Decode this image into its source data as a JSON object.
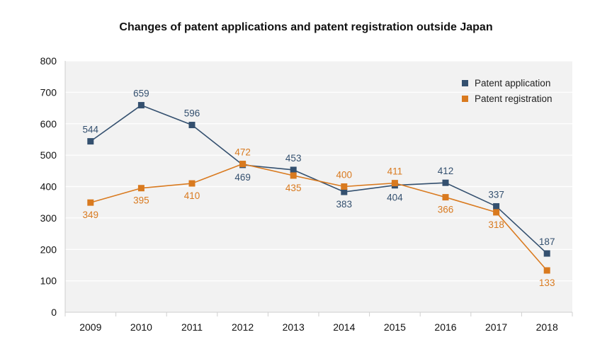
{
  "chart_data": {
    "type": "line",
    "title": "Changes of patent applications and patent registration outside Japan",
    "xlabel": "",
    "ylabel": "",
    "categories": [
      "2009",
      "2010",
      "2011",
      "2012",
      "2013",
      "2014",
      "2015",
      "2016",
      "2017",
      "2018"
    ],
    "series": [
      {
        "name": "Patent application",
        "values": [
          544,
          659,
          596,
          469,
          453,
          383,
          404,
          412,
          337,
          187
        ],
        "color": "#34506f",
        "labels": [
          "544",
          "659",
          "596",
          "469",
          "453",
          "383",
          "404",
          "412",
          "337",
          "187"
        ]
      },
      {
        "name": "Patent registration",
        "values": [
          349,
          395,
          410,
          472,
          435,
          400,
          411,
          366,
          318,
          133
        ],
        "color": "#d97a1f",
        "labels": [
          "349",
          "395",
          "410",
          "472",
          "435",
          "400",
          "411",
          "366",
          "318",
          "133"
        ]
      }
    ],
    "ylim": [
      0,
      800
    ],
    "yticks": [
      "0",
      "100",
      "200",
      "300",
      "400",
      "500",
      "600",
      "700",
      "800"
    ],
    "grid": true,
    "legend_position": "top-right"
  }
}
